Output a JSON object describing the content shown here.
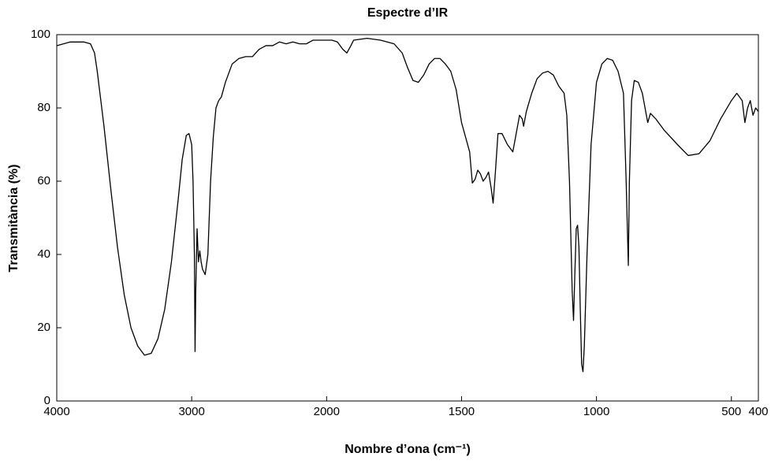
{
  "chart_data": {
    "type": "line",
    "title": "Espectre d’IR",
    "x_label": "Nombre d’ona (cm⁻¹)",
    "y_label": "Transmitància (%)",
    "xlim": [
      4000,
      400
    ],
    "ylim": [
      0,
      100
    ],
    "x_scale_change": {
      "at": 2000,
      "factor": 2
    },
    "xticks": [
      4000,
      3000,
      2000,
      1500,
      1000,
      500,
      400
    ],
    "yticks": [
      0,
      20,
      40,
      60,
      80,
      100
    ],
    "series": [
      {
        "color": "#000000",
        "x": [
          4000,
          3900,
          3800,
          3750,
          3720,
          3700,
          3650,
          3600,
          3550,
          3500,
          3450,
          3400,
          3350,
          3300,
          3250,
          3200,
          3150,
          3100,
          3070,
          3040,
          3020,
          3000,
          2990,
          2980,
          2975,
          2970,
          2960,
          2950,
          2940,
          2930,
          2920,
          2900,
          2880,
          2870,
          2860,
          2840,
          2820,
          2800,
          2780,
          2750,
          2700,
          2650,
          2600,
          2550,
          2500,
          2450,
          2400,
          2350,
          2300,
          2250,
          2200,
          2150,
          2100,
          2050,
          2000,
          1980,
          1960,
          1940,
          1925,
          1910,
          1900,
          1850,
          1800,
          1750,
          1720,
          1700,
          1680,
          1660,
          1640,
          1620,
          1600,
          1580,
          1560,
          1540,
          1520,
          1500,
          1485,
          1470,
          1460,
          1450,
          1440,
          1430,
          1420,
          1410,
          1400,
          1390,
          1383,
          1375,
          1365,
          1350,
          1330,
          1310,
          1300,
          1285,
          1275,
          1270,
          1260,
          1240,
          1220,
          1200,
          1180,
          1160,
          1140,
          1120,
          1110,
          1100,
          1090,
          1085,
          1080,
          1075,
          1070,
          1065,
          1060,
          1055,
          1050,
          1045,
          1035,
          1020,
          1000,
          980,
          960,
          940,
          920,
          900,
          890,
          882,
          878,
          870,
          860,
          845,
          830,
          820,
          810,
          800,
          780,
          750,
          700,
          660,
          620,
          580,
          540,
          500,
          480,
          460,
          450,
          440,
          430,
          420,
          410,
          400
        ],
        "values": [
          97,
          98,
          98,
          97.5,
          95,
          90,
          75,
          58,
          42,
          29,
          20,
          15,
          12.5,
          13,
          17,
          25,
          38,
          55,
          66,
          72.5,
          73,
          70,
          60,
          40,
          13.5,
          30,
          47,
          38,
          41,
          38,
          36,
          34.5,
          40,
          50,
          60,
          72,
          80,
          82,
          83,
          87,
          92,
          93.5,
          94,
          94,
          96,
          97,
          97,
          98,
          97.5,
          98,
          97.5,
          97.5,
          98.5,
          98.5,
          98.5,
          98.5,
          98,
          96,
          95,
          97,
          98.5,
          99,
          98.5,
          97.5,
          95,
          91,
          87.5,
          87,
          89,
          92,
          93.5,
          93.5,
          92,
          90,
          85,
          76,
          72,
          68,
          59.5,
          60.5,
          63,
          62,
          60,
          61,
          62.5,
          58,
          54,
          62,
          73,
          73,
          70,
          68,
          72,
          78,
          77,
          75,
          79,
          84,
          88,
          89.5,
          90,
          89,
          86,
          84,
          78,
          60,
          30,
          22,
          35,
          47,
          48,
          42,
          25,
          10,
          8,
          15,
          40,
          70,
          87,
          92,
          93.5,
          93,
          90,
          84,
          60,
          37,
          60,
          82,
          87.5,
          87,
          84,
          80,
          76,
          78.5,
          77,
          74,
          70,
          67,
          67.5,
          71,
          77,
          82,
          84,
          82,
          76,
          80,
          82,
          78,
          80,
          79
        ]
      }
    ]
  }
}
